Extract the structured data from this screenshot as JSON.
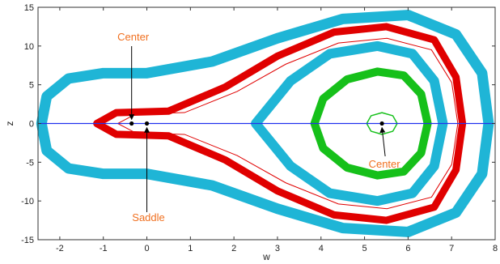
{
  "chart_data": {
    "type": "line",
    "xlabel": "w",
    "ylabel": "z",
    "xlim": [
      -2.5,
      8
    ],
    "ylim": [
      -15,
      15
    ],
    "x_ticks": [
      "-2",
      "-1",
      "0",
      "1",
      "2",
      "3",
      "4",
      "5",
      "6",
      "7",
      "8"
    ],
    "y_ticks": [
      "15",
      "10",
      "5",
      "0",
      "-5",
      "-10",
      "-15"
    ],
    "grid": false,
    "legend": "none",
    "colors": {
      "outer": "#1fb5d6",
      "separatrix": "#e00000",
      "inner": "#1fb5d6",
      "core": "#16c01a",
      "small": "#16c01a",
      "axis_line": "#2233ee",
      "annotation": "#f07020"
    },
    "series": [
      {
        "x": [
          7.85,
          7.7,
          7.1,
          6.0,
          4.5,
          3.0,
          1.5,
          0.0,
          -1.0,
          -1.8,
          -2.3,
          -2.42,
          -2.3,
          -1.8,
          -1.0,
          0.0,
          1.5,
          3.0,
          4.5,
          6.0,
          7.1,
          7.7,
          7.85
        ],
        "y": [
          0,
          6.5,
          11.5,
          14.0,
          13.5,
          11.0,
          8.0,
          6.5,
          6.5,
          5.8,
          3.5,
          0,
          -3.5,
          -5.8,
          -6.5,
          -6.5,
          -8.0,
          -11.0,
          -13.5,
          -14.0,
          -11.5,
          -6.5,
          0
        ]
      },
      {
        "x": [
          7.25,
          7.1,
          6.6,
          5.5,
          4.3,
          3.0,
          1.8,
          0.5,
          -0.7,
          -1.15,
          -0.7,
          0.5,
          1.8,
          3.0,
          4.3,
          5.5,
          6.6,
          7.1,
          7.25
        ],
        "y": [
          0,
          6.0,
          10.8,
          12.5,
          11.8,
          8.7,
          4.7,
          1.6,
          1.4,
          0,
          -1.4,
          -1.6,
          -4.7,
          -8.7,
          -11.8,
          -12.5,
          -10.8,
          -6.0,
          0
        ]
      },
      {
        "x": [
          6.8,
          6.6,
          6.1,
          5.3,
          4.2,
          3.3,
          2.5,
          3.3,
          4.2,
          5.3,
          6.1,
          6.6,
          6.8
        ],
        "y": [
          0,
          5.5,
          9.0,
          10.0,
          9.0,
          5.5,
          0,
          -5.5,
          -9.0,
          -10.0,
          -9.0,
          -5.5,
          0
        ]
      },
      {
        "x": [
          6.45,
          6.3,
          5.9,
          5.3,
          4.6,
          4.05,
          3.85,
          4.05,
          4.6,
          5.3,
          5.9,
          6.3,
          6.45
        ],
        "y": [
          0,
          3.8,
          6.2,
          6.7,
          5.7,
          3.2,
          0,
          -3.2,
          -5.7,
          -6.7,
          -6.2,
          -3.8,
          0
        ]
      },
      {
        "x": [
          5.75,
          5.65,
          5.4,
          5.15,
          5.05,
          5.15,
          5.4,
          5.65,
          5.75
        ],
        "y": [
          0,
          1.0,
          1.4,
          1.0,
          0,
          -1.0,
          -1.4,
          -1.0,
          0
        ]
      }
    ],
    "points": [
      {
        "x": -0.35,
        "y": 0
      },
      {
        "x": 0.0,
        "y": 0
      },
      {
        "x": 5.4,
        "y": 0
      }
    ],
    "annotations": [
      {
        "text": "Center",
        "x": -0.35,
        "y": 0
      },
      {
        "text": "Saddle",
        "x": 0.0,
        "y": 0
      },
      {
        "text": "Center",
        "x": 5.4,
        "y": 0
      }
    ]
  }
}
